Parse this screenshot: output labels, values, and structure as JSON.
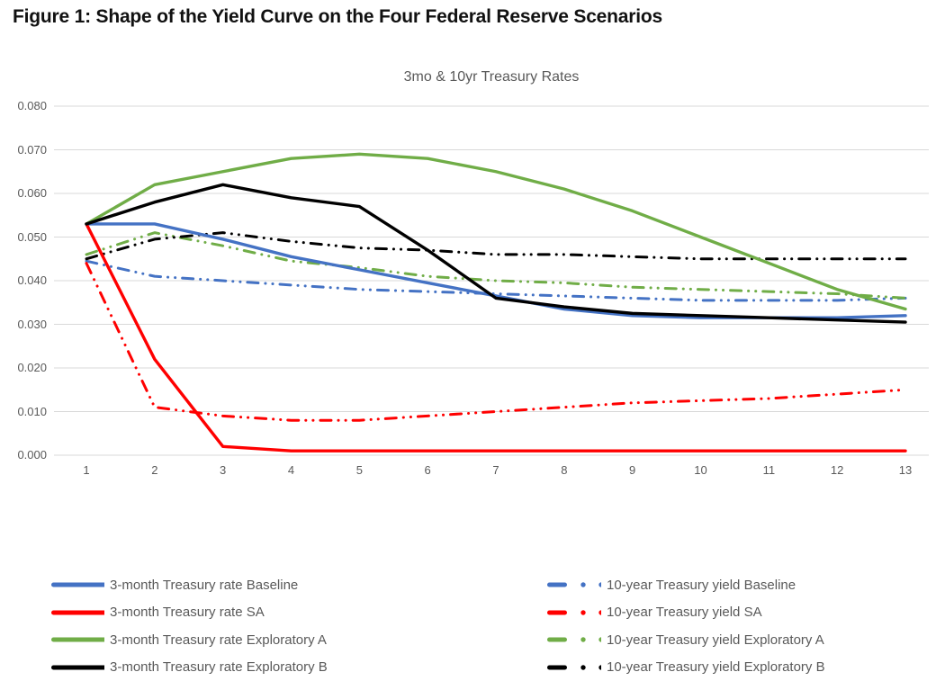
{
  "figure_title": "Figure 1: Shape of the Yield Curve on the Four Federal Reserve Scenarios",
  "chart_data": {
    "type": "line",
    "title": "3mo & 10yr Treasury Rates",
    "x": [
      1,
      2,
      3,
      4,
      5,
      6,
      7,
      8,
      9,
      10,
      11,
      12,
      13
    ],
    "xlabel": "",
    "ylabel": "",
    "ylim": [
      0.0,
      0.08
    ],
    "ytick_step": 0.01,
    "ytick_format": "0.000",
    "grid": "horizontal light-gray gridlines",
    "legend_position": "bottom, two columns (solid 3-month series left, dash-dot 10-year series right)",
    "colors": {
      "baseline": "#4472C4",
      "sa": "#FF0000",
      "exploratory_a": "#70AD47",
      "exploratory_b": "#000000",
      "axis_text": "#595959",
      "gridline": "#D9D9D9",
      "title_text": "#111111"
    },
    "series": [
      {
        "name": "3-month Treasury rate Baseline",
        "color": "#4472C4",
        "line_style": "solid",
        "legend_column": 0,
        "values": [
          0.053,
          0.053,
          0.0495,
          0.0455,
          0.0425,
          0.0395,
          0.0365,
          0.0335,
          0.032,
          0.0315,
          0.0315,
          0.0315,
          0.032
        ]
      },
      {
        "name": "3-month Treasury rate SA",
        "color": "#FF0000",
        "line_style": "solid",
        "legend_column": 0,
        "values": [
          0.053,
          0.022,
          0.002,
          0.001,
          0.001,
          0.001,
          0.001,
          0.001,
          0.001,
          0.001,
          0.001,
          0.001,
          0.001
        ]
      },
      {
        "name": "3-month Treasury rate Exploratory A",
        "color": "#70AD47",
        "line_style": "solid",
        "legend_column": 0,
        "values": [
          0.053,
          0.062,
          0.065,
          0.068,
          0.069,
          0.068,
          0.065,
          0.061,
          0.056,
          0.05,
          0.044,
          0.038,
          0.0335
        ]
      },
      {
        "name": "3-month Treasury rate Exploratory B",
        "color": "#000000",
        "line_style": "solid",
        "legend_column": 0,
        "values": [
          0.053,
          0.058,
          0.062,
          0.059,
          0.057,
          0.047,
          0.036,
          0.034,
          0.0325,
          0.032,
          0.0315,
          0.031,
          0.0305
        ]
      },
      {
        "name": "10-year Treasury yield Baseline",
        "color": "#4472C4",
        "line_style": "dash-dot-dot",
        "legend_column": 1,
        "values": [
          0.0445,
          0.041,
          0.04,
          0.039,
          0.038,
          0.0375,
          0.037,
          0.0365,
          0.036,
          0.0355,
          0.0355,
          0.0355,
          0.036
        ]
      },
      {
        "name": "10-year Treasury yield SA",
        "color": "#FF0000",
        "line_style": "dash-dot-dot",
        "legend_column": 1,
        "values": [
          0.044,
          0.011,
          0.009,
          0.008,
          0.008,
          0.009,
          0.01,
          0.011,
          0.012,
          0.0125,
          0.013,
          0.014,
          0.015
        ]
      },
      {
        "name": "10-year Treasury yield Exploratory A",
        "color": "#70AD47",
        "line_style": "dash-dot-dot",
        "legend_column": 1,
        "values": [
          0.046,
          0.051,
          0.048,
          0.0445,
          0.043,
          0.041,
          0.04,
          0.0395,
          0.0385,
          0.038,
          0.0375,
          0.037,
          0.036
        ]
      },
      {
        "name": "10-year Treasury yield Exploratory B",
        "color": "#000000",
        "line_style": "dash-dot-dot",
        "legend_column": 1,
        "values": [
          0.045,
          0.0495,
          0.051,
          0.049,
          0.0475,
          0.047,
          0.046,
          0.046,
          0.0455,
          0.045,
          0.045,
          0.045,
          0.045
        ]
      }
    ]
  }
}
